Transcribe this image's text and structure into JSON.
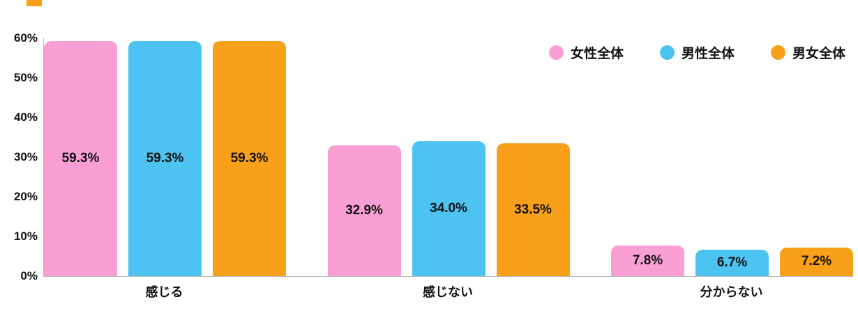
{
  "colors": {
    "pink": "#FA9FD4",
    "blue": "#4DC3F2",
    "orange": "#F9A01B",
    "axis": "#b8b8b8",
    "text": "#111111"
  },
  "title_accent_color": "#F9A01B",
  "chart_data": {
    "type": "bar",
    "title": "",
    "categories": [
      "感じる",
      "感じない",
      "分からない"
    ],
    "series": [
      {
        "name": "女性全体",
        "color": "#FA9FD4",
        "values": [
          59.3,
          32.9,
          7.8
        ]
      },
      {
        "name": "男性全体",
        "color": "#4DC3F2",
        "values": [
          59.3,
          34.0,
          6.7
        ]
      },
      {
        "name": "男女全体",
        "color": "#F9A01B",
        "values": [
          59.3,
          33.5,
          7.2
        ]
      }
    ],
    "value_labels": [
      [
        "59.3%",
        "32.9%",
        "7.8%"
      ],
      [
        "59.3%",
        "34.0%",
        "6.7%"
      ],
      [
        "59.3%",
        "33.5%",
        "7.2%"
      ]
    ],
    "xlabel": "",
    "ylabel": "",
    "ylim": [
      0,
      60
    ],
    "yticks": [
      "0%",
      "10%",
      "20%",
      "30%",
      "40%",
      "50%",
      "60%"
    ],
    "grid": false,
    "legend_position": "top-right"
  }
}
